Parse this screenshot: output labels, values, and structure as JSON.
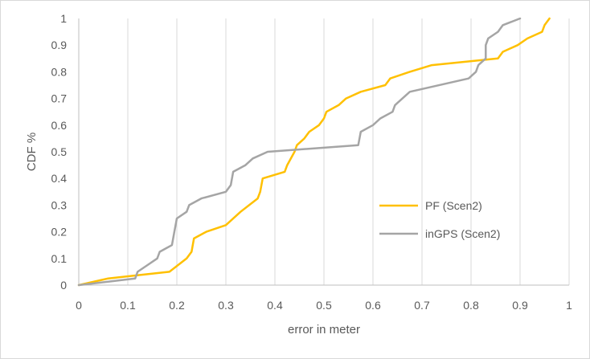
{
  "chart_data": {
    "type": "line",
    "title": "",
    "xlabel": "error in meter",
    "ylabel": "CDF %",
    "xlim": [
      0,
      1
    ],
    "ylim": [
      0,
      1
    ],
    "x_ticks": [
      "0",
      "0.1",
      "0.2",
      "0.3",
      "0.4",
      "0.5",
      "0.6",
      "0.7",
      "0.8",
      "0.9",
      "1"
    ],
    "y_ticks": [
      "0",
      "0.1",
      "0.2",
      "0.3",
      "0.4",
      "0.5",
      "0.6",
      "0.7",
      "0.8",
      "0.9",
      "1"
    ],
    "grid": "vertical",
    "legend_position": "right",
    "series": [
      {
        "name": "PF (Scen2)",
        "color": "#FFC000",
        "points": [
          [
            0,
            0
          ],
          [
            0.06,
            0.025
          ],
          [
            0.11,
            0.035
          ],
          [
            0.185,
            0.05
          ],
          [
            0.22,
            0.1
          ],
          [
            0.23,
            0.125
          ],
          [
            0.235,
            0.175
          ],
          [
            0.26,
            0.2
          ],
          [
            0.3,
            0.225
          ],
          [
            0.33,
            0.275
          ],
          [
            0.365,
            0.325
          ],
          [
            0.37,
            0.35
          ],
          [
            0.375,
            0.4
          ],
          [
            0.42,
            0.425
          ],
          [
            0.425,
            0.45
          ],
          [
            0.44,
            0.5
          ],
          [
            0.445,
            0.525
          ],
          [
            0.46,
            0.55
          ],
          [
            0.47,
            0.575
          ],
          [
            0.49,
            0.6
          ],
          [
            0.5,
            0.625
          ],
          [
            0.505,
            0.65
          ],
          [
            0.53,
            0.675
          ],
          [
            0.545,
            0.7
          ],
          [
            0.575,
            0.725
          ],
          [
            0.625,
            0.75
          ],
          [
            0.635,
            0.775
          ],
          [
            0.675,
            0.8
          ],
          [
            0.72,
            0.825
          ],
          [
            0.855,
            0.85
          ],
          [
            0.865,
            0.875
          ],
          [
            0.895,
            0.9
          ],
          [
            0.915,
            0.925
          ],
          [
            0.945,
            0.95
          ],
          [
            0.95,
            0.975
          ],
          [
            0.96,
            1.0
          ]
        ]
      },
      {
        "name": "inGPS (Scen2)",
        "color": "#A5A5A5",
        "points": [
          [
            0,
            0
          ],
          [
            0.07,
            0.015
          ],
          [
            0.115,
            0.025
          ],
          [
            0.12,
            0.05
          ],
          [
            0.14,
            0.075
          ],
          [
            0.16,
            0.1
          ],
          [
            0.165,
            0.125
          ],
          [
            0.18,
            0.14
          ],
          [
            0.19,
            0.15
          ],
          [
            0.195,
            0.2
          ],
          [
            0.2,
            0.25
          ],
          [
            0.22,
            0.275
          ],
          [
            0.225,
            0.3
          ],
          [
            0.25,
            0.325
          ],
          [
            0.3,
            0.35
          ],
          [
            0.31,
            0.375
          ],
          [
            0.315,
            0.425
          ],
          [
            0.34,
            0.45
          ],
          [
            0.355,
            0.475
          ],
          [
            0.385,
            0.5
          ],
          [
            0.57,
            0.525
          ],
          [
            0.575,
            0.575
          ],
          [
            0.6,
            0.6
          ],
          [
            0.615,
            0.625
          ],
          [
            0.64,
            0.65
          ],
          [
            0.645,
            0.675
          ],
          [
            0.675,
            0.725
          ],
          [
            0.795,
            0.775
          ],
          [
            0.81,
            0.8
          ],
          [
            0.815,
            0.825
          ],
          [
            0.83,
            0.85
          ],
          [
            0.83,
            0.9
          ],
          [
            0.835,
            0.925
          ],
          [
            0.855,
            0.95
          ],
          [
            0.865,
            0.975
          ],
          [
            0.9,
            1.0
          ]
        ]
      }
    ]
  }
}
